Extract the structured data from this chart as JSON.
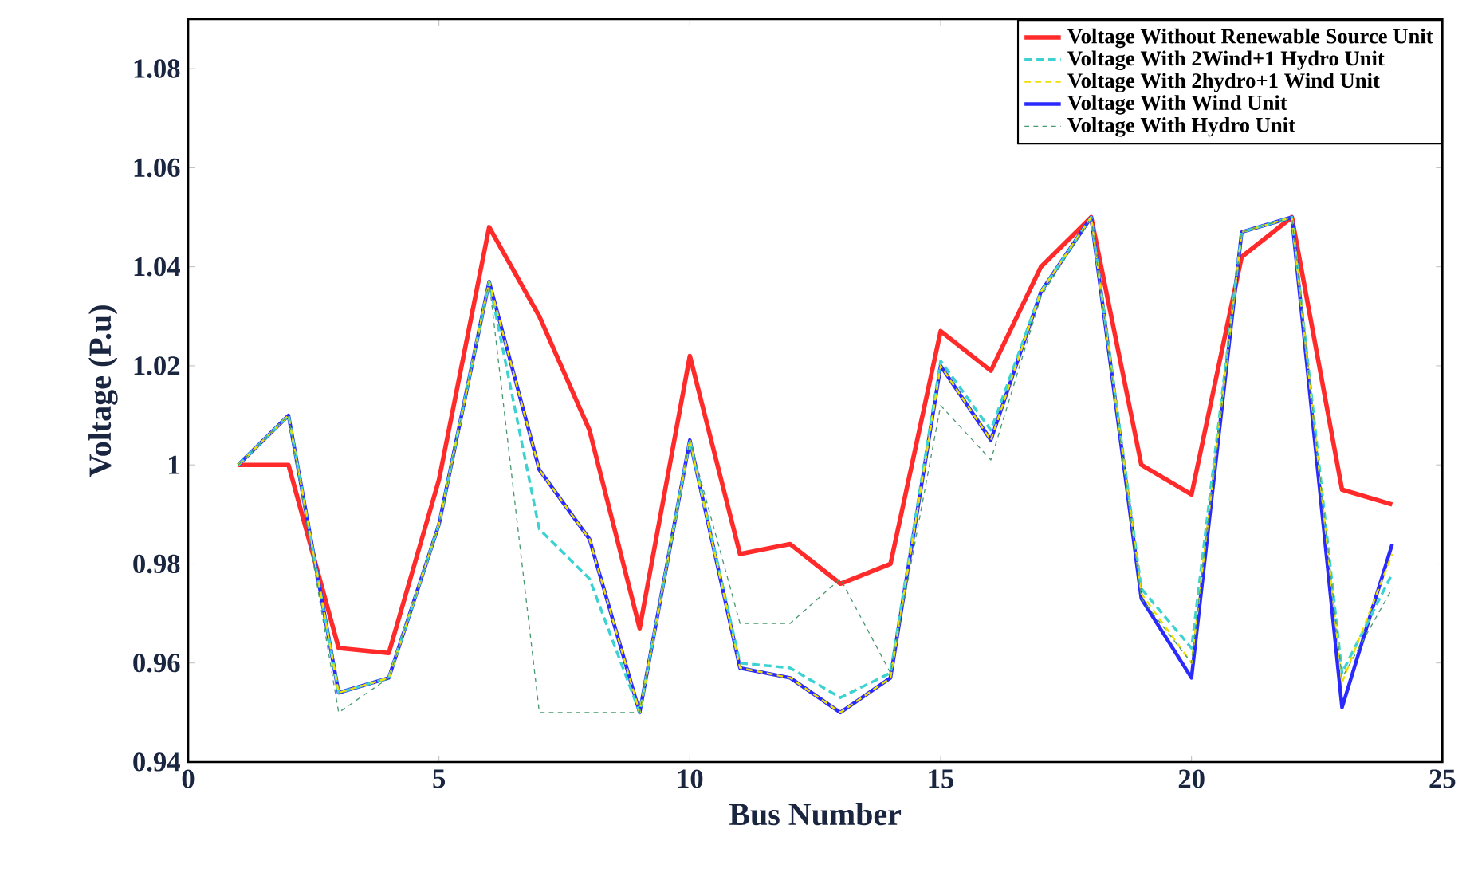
{
  "chart_data": {
    "type": "line",
    "xlabel": "Bus Number",
    "ylabel": "Voltage (P.u)",
    "x": [
      1,
      2,
      3,
      4,
      5,
      6,
      7,
      8,
      9,
      10,
      11,
      12,
      13,
      14,
      15,
      16,
      17,
      18,
      19,
      20,
      21,
      22,
      23,
      24
    ],
    "series": [
      {
        "name": "Voltage Without Renewable Source Unit",
        "color": "#ff2a2a",
        "line_style": "solid",
        "values": [
          1.0,
          1.0,
          0.963,
          0.962,
          0.997,
          1.048,
          1.03,
          1.007,
          0.967,
          1.022,
          0.982,
          0.984,
          0.976,
          0.98,
          1.027,
          1.019,
          1.04,
          1.05,
          1.0,
          0.994,
          1.042,
          1.05,
          0.995,
          0.992
        ]
      },
      {
        "name": "Voltage With 2Wind+1 Hydro Unit",
        "color": "#3cd2d2",
        "line_style": "dashed",
        "values": [
          1.0,
          1.01,
          0.954,
          0.957,
          0.988,
          1.037,
          0.987,
          0.977,
          0.95,
          1.005,
          0.96,
          0.959,
          0.953,
          0.958,
          1.021,
          1.007,
          1.035,
          1.05,
          0.975,
          0.963,
          1.047,
          1.05,
          0.958,
          0.978
        ]
      },
      {
        "name": "Voltage With 2hydro+1 Wind Unit",
        "color": "#f0e000",
        "line_style": "dashed",
        "values": [
          1.0,
          1.01,
          0.954,
          0.957,
          0.988,
          1.037,
          0.999,
          0.985,
          0.95,
          1.005,
          0.959,
          0.957,
          0.95,
          0.957,
          1.02,
          1.005,
          1.035,
          1.05,
          0.974,
          0.96,
          1.047,
          1.05,
          0.956,
          0.982
        ]
      },
      {
        "name": "Voltage With Wind Unit",
        "color": "#2a2aff",
        "line_style": "solid",
        "values": [
          1.0,
          1.01,
          0.954,
          0.957,
          0.988,
          1.037,
          0.999,
          0.985,
          0.95,
          1.005,
          0.959,
          0.957,
          0.95,
          0.957,
          1.02,
          1.005,
          1.035,
          1.05,
          0.973,
          0.957,
          1.047,
          1.05,
          0.951,
          0.984
        ]
      },
      {
        "name": "Voltage With Hydro Unit",
        "color": "#4a9a70",
        "line_style": "dashed",
        "values": [
          1.0,
          1.01,
          0.95,
          0.957,
          0.988,
          1.037,
          0.95,
          0.95,
          0.95,
          1.005,
          0.968,
          0.968,
          0.977,
          0.958,
          1.012,
          1.001,
          1.034,
          1.05,
          0.973,
          0.96,
          1.047,
          1.05,
          0.957,
          0.975
        ]
      }
    ],
    "xlim": [
      0,
      25
    ],
    "ylim": [
      0.94,
      1.09
    ],
    "xticks": [
      0,
      5,
      10,
      15,
      20,
      25
    ],
    "yticks": [
      0.94,
      0.96,
      0.98,
      1,
      1.02,
      1.04,
      1.06,
      1.08
    ],
    "grid": false,
    "legend": "top right"
  }
}
